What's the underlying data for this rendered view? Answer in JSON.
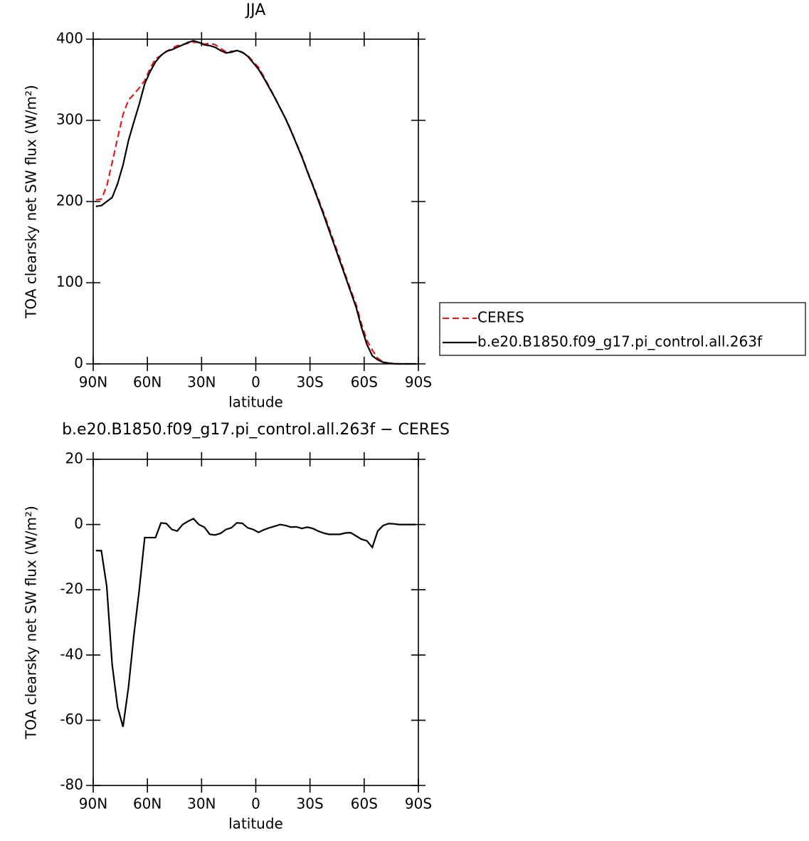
{
  "chart_data": [
    {
      "type": "line",
      "title": "JJA",
      "xlabel": "latitude",
      "ylabel": "TOA clearsky net SW flux (W/m²)",
      "x": [
        88.5,
        85.5,
        82.5,
        79.5,
        76.5,
        73.5,
        70.5,
        67.5,
        64.5,
        61.5,
        58.5,
        55.5,
        52.5,
        49.5,
        46.5,
        43.5,
        40.5,
        37.5,
        34.5,
        31.5,
        28.5,
        25.5,
        22.5,
        19.5,
        16.5,
        13.5,
        10.5,
        7.5,
        4.5,
        1.5,
        -1.5,
        -4.5,
        -7.5,
        -10.5,
        -13.5,
        -16.5,
        -19.5,
        -22.5,
        -25.5,
        -28.5,
        -31.5,
        -34.5,
        -37.5,
        -40.5,
        -43.5,
        -46.5,
        -49.5,
        -52.5,
        -55.5,
        -58.5,
        -61.5,
        -64.5,
        -67.5,
        -70.5,
        -73.5,
        -76.5,
        -79.5,
        -82.5,
        -85.5,
        -88.5
      ],
      "xlim": [
        90,
        -90
      ],
      "xticks": [
        {
          "value": 90,
          "label": "90N"
        },
        {
          "value": 60,
          "label": "60N"
        },
        {
          "value": 30,
          "label": "30N"
        },
        0,
        {
          "value": -30,
          "label": "30S"
        },
        {
          "value": -60,
          "label": "60S"
        },
        {
          "value": -90,
          "label": "90S"
        }
      ],
      "ylim": [
        0,
        400
      ],
      "yticks": [
        0,
        100,
        200,
        300,
        400
      ],
      "legend": "right",
      "series": [
        {
          "name": "CERES",
          "color": "#e41a1c",
          "linestyle": "dashed",
          "values": [
            202,
            203,
            219,
            248,
            278,
            307,
            325,
            332,
            340,
            349,
            364,
            376,
            379.5,
            384.7,
            388.5,
            392,
            393,
            395,
            396.2,
            396,
            393.8,
            395,
            393.2,
            388.7,
            384.5,
            385,
            385.5,
            383.6,
            380,
            372.5,
            365.4,
            353.6,
            341,
            328.5,
            315,
            302.3,
            287.8,
            271.7,
            256.2,
            237.8,
            221.2,
            204,
            186.6,
            168,
            149,
            130,
            110.6,
            91.5,
            73.5,
            49.5,
            29,
            17,
            7,
            2.3,
            0.7,
            0,
            0,
            0,
            0,
            0
          ]
        },
        {
          "name": "b.e20.B1850.f09_g17.pi_control.all.263f",
          "color": "#000000",
          "linestyle": "solid",
          "values": [
            194,
            195,
            200,
            205,
            222,
            245,
            275,
            298,
            320,
            345,
            360,
            372,
            380,
            385,
            387,
            390,
            393,
            396,
            398,
            396,
            393,
            392,
            390,
            386,
            383,
            384,
            386,
            384,
            379,
            371,
            363,
            352,
            340,
            328,
            315,
            302,
            287,
            271,
            255,
            237,
            220,
            202,
            184,
            165,
            146,
            127,
            108,
            89,
            70,
            45,
            24,
            10,
            5,
            2,
            1,
            0.2,
            0,
            0,
            0,
            0
          ]
        }
      ]
    },
    {
      "type": "line",
      "title": "b.e20.B1850.f09_g17.pi_control.all.263f − CERES",
      "xlabel": "latitude",
      "ylabel": "TOA clearsky net SW flux (W/m²)",
      "x": [
        88.5,
        85.5,
        82.5,
        79.5,
        76.5,
        73.5,
        70.5,
        67.5,
        64.5,
        61.5,
        58.5,
        55.5,
        52.5,
        49.5,
        46.5,
        43.5,
        40.5,
        37.5,
        34.5,
        31.5,
        28.5,
        25.5,
        22.5,
        19.5,
        16.5,
        13.5,
        10.5,
        7.5,
        4.5,
        1.5,
        -1.5,
        -4.5,
        -7.5,
        -10.5,
        -13.5,
        -16.5,
        -19.5,
        -22.5,
        -25.5,
        -28.5,
        -31.5,
        -34.5,
        -37.5,
        -40.5,
        -43.5,
        -46.5,
        -49.5,
        -52.5,
        -55.5,
        -58.5,
        -61.5,
        -64.5,
        -67.5,
        -70.5,
        -73.5,
        -76.5,
        -79.5,
        -82.5,
        -85.5,
        -88.5
      ],
      "xlim": [
        90,
        -90
      ],
      "xticks": [
        {
          "value": 90,
          "label": "90N"
        },
        {
          "value": 60,
          "label": "60N"
        },
        {
          "value": 30,
          "label": "30N"
        },
        0,
        {
          "value": -30,
          "label": "30S"
        },
        {
          "value": -60,
          "label": "60S"
        },
        {
          "value": -90,
          "label": "90S"
        }
      ],
      "ylim": [
        -80,
        20
      ],
      "yticks": [
        -80,
        -60,
        -40,
        -20,
        0,
        20
      ],
      "series": [
        {
          "color": "#000000",
          "linestyle": "solid",
          "values": [
            -8,
            -8,
            -19,
            -43,
            -56,
            -62,
            -50,
            -34,
            -20,
            -4,
            -4,
            -4,
            0.5,
            0.3,
            -1.5,
            -2,
            0,
            1,
            1.8,
            0,
            -0.8,
            -3,
            -3.2,
            -2.7,
            -1.5,
            -1,
            0.5,
            0.4,
            -1,
            -1.5,
            -2.4,
            -1.6,
            -1,
            -0.5,
            0,
            -0.3,
            -0.8,
            -0.7,
            -1.2,
            -0.8,
            -1.2,
            -2,
            -2.6,
            -3,
            -3,
            -3,
            -2.6,
            -2.5,
            -3.5,
            -4.5,
            -5,
            -7,
            -2,
            -0.3,
            0.3,
            0.2,
            0,
            0,
            0,
            0
          ]
        }
      ]
    }
  ]
}
